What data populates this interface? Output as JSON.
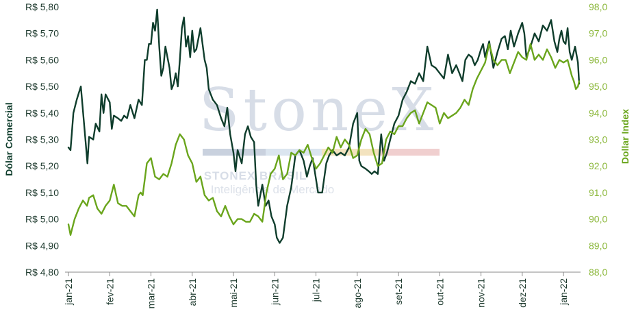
{
  "watermark": {
    "brand": "StoneX",
    "company": "STONEX BRASIL",
    "tagline": "Inteligência de Mercado",
    "bar_colors": [
      "#c9d1de",
      "#dbe5ef",
      "#f3e3bf",
      "#f0cfcf"
    ]
  },
  "chart_data": {
    "type": "line",
    "xlabel": "",
    "x_tick_labels": [
      "jan-21",
      "fev-21",
      "mar-21",
      "abr-21",
      "mai-21",
      "jun-21",
      "jul-21",
      "ago-21",
      "set-21",
      "out-21",
      "nov-21",
      "dez-21",
      "jan-22"
    ],
    "x_range_months": [
      0,
      12.38
    ],
    "y_left": {
      "label": "Dólar Comercial",
      "range": [
        4.8,
        5.8
      ],
      "ticks": [
        4.8,
        4.9,
        5.0,
        5.1,
        5.2,
        5.3,
        5.4,
        5.5,
        5.6,
        5.7,
        5.8
      ],
      "tick_labels": [
        "R$ 4,80",
        "R$ 4,90",
        "R$ 5,00",
        "R$ 5,10",
        "R$ 5,20",
        "R$ 5,30",
        "R$ 5,40",
        "R$ 5,50",
        "R$ 5,60",
        "R$ 5,70",
        "R$ 5,80"
      ],
      "color": "#0f3d2c"
    },
    "y_right": {
      "label": "Dollar Index",
      "range": [
        88.0,
        98.0
      ],
      "ticks": [
        88,
        89,
        90,
        91,
        92,
        93,
        94,
        95,
        96,
        97,
        98
      ],
      "tick_labels": [
        "88,0",
        "89,0",
        "90,0",
        "91,0",
        "92,0",
        "93,0",
        "94,0",
        "95,0",
        "96,0",
        "97,0",
        "98,0"
      ],
      "color": "#6aa51c"
    },
    "grid": false,
    "legend": "none",
    "series": [
      {
        "axis": "left",
        "color": "#0f3d2c",
        "x": [
          0.0,
          0.05,
          0.12,
          0.2,
          0.3,
          0.4,
          0.46,
          0.5,
          0.6,
          0.66,
          0.75,
          0.8,
          0.85,
          0.9,
          1.0,
          1.05,
          1.1,
          1.2,
          1.28,
          1.35,
          1.42,
          1.5,
          1.6,
          1.7,
          1.78,
          1.85,
          1.9,
          1.95,
          2.0,
          2.05,
          2.1,
          2.15,
          2.2,
          2.25,
          2.3,
          2.35,
          2.45,
          2.5,
          2.55,
          2.6,
          2.65,
          2.7,
          2.75,
          2.8,
          2.85,
          2.9,
          2.95,
          3.0,
          3.05,
          3.1,
          3.15,
          3.2,
          3.3,
          3.35,
          3.4,
          3.5,
          3.6,
          3.7,
          3.78,
          3.85,
          3.92,
          4.0,
          4.05,
          4.1,
          4.2,
          4.28,
          4.35,
          4.42,
          4.5,
          4.55,
          4.6,
          4.7,
          4.78,
          4.85,
          4.92,
          5.0,
          5.05,
          5.12,
          5.2,
          5.3,
          5.4,
          5.5,
          5.6,
          5.7,
          5.78,
          5.85,
          5.92,
          6.0,
          6.05,
          6.15,
          6.25,
          6.32,
          6.4,
          6.5,
          6.6,
          6.7,
          6.8,
          6.9,
          7.0,
          7.05,
          7.1,
          7.2,
          7.28,
          7.35,
          7.42,
          7.5,
          7.58,
          7.65,
          7.72,
          7.8,
          7.9,
          8.0,
          8.1,
          8.2,
          8.3,
          8.4,
          8.5,
          8.6,
          8.7,
          8.8,
          8.9,
          9.0,
          9.1,
          9.2,
          9.3,
          9.4,
          9.5,
          9.55,
          9.62,
          9.7,
          9.78,
          9.85,
          9.92,
          10.0,
          10.05,
          10.1,
          10.2,
          10.3,
          10.4,
          10.5,
          10.58,
          10.65,
          10.72,
          10.8,
          10.9,
          11.0,
          11.05,
          11.1,
          11.2,
          11.3,
          11.4,
          11.5,
          11.6,
          11.7,
          11.78,
          11.85,
          11.9,
          11.95,
          12.0,
          12.05,
          12.1,
          12.15,
          12.2,
          12.28,
          12.35,
          12.38
        ],
        "values": [
          5.27,
          5.26,
          5.4,
          5.45,
          5.5,
          5.32,
          5.21,
          5.31,
          5.3,
          5.36,
          5.33,
          5.47,
          5.4,
          5.47,
          5.44,
          5.34,
          5.39,
          5.38,
          5.37,
          5.39,
          5.38,
          5.43,
          5.38,
          5.45,
          5.43,
          5.6,
          5.6,
          5.66,
          5.66,
          5.74,
          5.71,
          5.79,
          5.65,
          5.54,
          5.57,
          5.65,
          5.57,
          5.49,
          5.51,
          5.55,
          5.5,
          5.6,
          5.72,
          5.76,
          5.65,
          5.69,
          5.61,
          5.71,
          5.63,
          5.64,
          5.68,
          5.72,
          5.6,
          5.57,
          5.49,
          5.45,
          5.43,
          5.38,
          5.35,
          5.42,
          5.32,
          5.25,
          5.18,
          5.26,
          5.21,
          5.32,
          5.35,
          5.31,
          5.29,
          5.13,
          5.05,
          5.13,
          5.05,
          5.07,
          5.01,
          4.98,
          4.93,
          4.91,
          4.93,
          5.05,
          5.12,
          5.24,
          5.26,
          5.22,
          5.16,
          5.2,
          5.23,
          5.15,
          5.1,
          5.1,
          5.21,
          5.24,
          5.26,
          5.24,
          5.25,
          5.24,
          5.27,
          5.36,
          5.4,
          5.22,
          5.2,
          5.19,
          5.18,
          5.17,
          5.18,
          5.17,
          5.32,
          5.22,
          5.25,
          5.3,
          5.36,
          5.39,
          5.45,
          5.48,
          5.52,
          5.51,
          5.55,
          5.52,
          5.65,
          5.58,
          5.57,
          5.55,
          5.53,
          5.62,
          5.55,
          5.58,
          5.54,
          5.52,
          5.6,
          5.62,
          5.61,
          5.58,
          5.6,
          5.64,
          5.66,
          5.61,
          5.67,
          5.57,
          5.63,
          5.68,
          5.69,
          5.64,
          5.71,
          5.65,
          5.7,
          5.74,
          5.7,
          5.61,
          5.65,
          5.7,
          5.67,
          5.73,
          5.71,
          5.75,
          5.67,
          5.63,
          5.68,
          5.71,
          5.67,
          5.66,
          5.72,
          5.63,
          5.6,
          5.65,
          5.59,
          5.51
        ]
      },
      {
        "axis": "right",
        "color": "#6aa51c",
        "x": [
          0.0,
          0.05,
          0.15,
          0.25,
          0.35,
          0.45,
          0.5,
          0.6,
          0.7,
          0.8,
          0.9,
          1.0,
          1.1,
          1.2,
          1.3,
          1.4,
          1.5,
          1.6,
          1.7,
          1.75,
          1.8,
          1.9,
          2.0,
          2.1,
          2.2,
          2.3,
          2.4,
          2.5,
          2.6,
          2.7,
          2.8,
          2.9,
          3.0,
          3.1,
          3.2,
          3.3,
          3.4,
          3.5,
          3.6,
          3.7,
          3.8,
          3.9,
          4.0,
          4.1,
          4.2,
          4.3,
          4.4,
          4.5,
          4.6,
          4.7,
          4.8,
          4.9,
          5.0,
          5.1,
          5.2,
          5.3,
          5.4,
          5.5,
          5.6,
          5.7,
          5.8,
          5.9,
          6.0,
          6.1,
          6.2,
          6.3,
          6.4,
          6.5,
          6.6,
          6.7,
          6.8,
          6.9,
          7.0,
          7.1,
          7.2,
          7.3,
          7.4,
          7.5,
          7.6,
          7.7,
          7.8,
          7.9,
          8.0,
          8.1,
          8.2,
          8.3,
          8.4,
          8.5,
          8.6,
          8.7,
          8.8,
          8.9,
          9.0,
          9.1,
          9.2,
          9.3,
          9.4,
          9.5,
          9.6,
          9.7,
          9.8,
          9.9,
          10.0,
          10.1,
          10.2,
          10.3,
          10.4,
          10.5,
          10.6,
          10.7,
          10.8,
          10.9,
          11.0,
          11.1,
          11.2,
          11.3,
          11.4,
          11.5,
          11.6,
          11.7,
          11.8,
          11.9,
          12.0,
          12.1,
          12.2,
          12.25,
          12.3,
          12.35,
          12.38
        ],
        "values": [
          89.8,
          89.4,
          90.0,
          90.4,
          90.7,
          90.5,
          90.8,
          90.9,
          90.4,
          90.2,
          90.5,
          90.7,
          91.3,
          90.6,
          90.5,
          90.5,
          90.3,
          90.1,
          90.9,
          91.0,
          90.9,
          92.1,
          92.3,
          91.6,
          91.5,
          91.7,
          91.6,
          92.1,
          92.8,
          93.2,
          93.0,
          92.4,
          92.1,
          91.4,
          91.6,
          90.9,
          90.7,
          90.8,
          90.3,
          90.1,
          90.5,
          90.1,
          89.8,
          90.0,
          90.0,
          89.9,
          89.9,
          90.2,
          90.1,
          89.9,
          91.0,
          91.7,
          91.9,
          92.4,
          91.5,
          91.7,
          92.5,
          92.4,
          92.6,
          92.5,
          92.8,
          92.3,
          91.9,
          92.1,
          92.4,
          92.7,
          92.5,
          93.1,
          92.7,
          93.0,
          92.8,
          92.3,
          92.4,
          93.0,
          93.4,
          93.2,
          92.5,
          92.0,
          92.1,
          93.0,
          93.3,
          93.2,
          93.5,
          93.5,
          93.8,
          94.0,
          94.1,
          93.6,
          94.0,
          94.4,
          94.3,
          94.2,
          93.6,
          94.0,
          93.8,
          93.9,
          94.0,
          94.2,
          94.5,
          94.3,
          94.9,
          95.3,
          95.6,
          95.9,
          96.6,
          96.0,
          95.8,
          96.0,
          96.0,
          95.5,
          95.9,
          96.3,
          96.1,
          96.0,
          96.6,
          96.0,
          96.2,
          96.0,
          96.4,
          96.1,
          95.7,
          96.0,
          95.9,
          96.0,
          95.4,
          95.2,
          94.9,
          95.0,
          95.2
        ]
      }
    ]
  }
}
